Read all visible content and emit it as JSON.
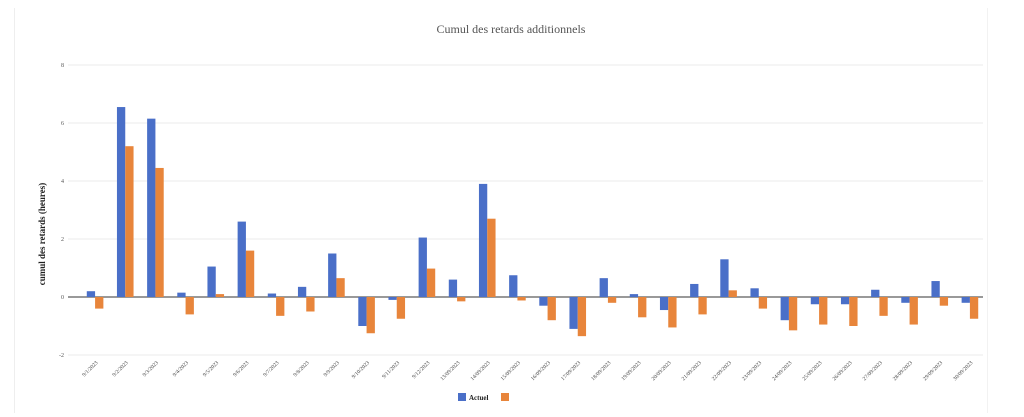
{
  "chart_data": {
    "type": "bar",
    "title": "Cumul des retards additionnels",
    "ylabel": "cumul des retards (heures)",
    "xlabel": "",
    "ylim": [
      -2,
      8
    ],
    "yticks": [
      "8",
      "6",
      "4",
      "2",
      "0",
      "-2"
    ],
    "grid": true,
    "legend_position": "bottom",
    "colors": [
      "#4a6fc8",
      "#e8853b"
    ],
    "categories": [
      "9/1/2023",
      "9/2/2023",
      "9/3/2023",
      "9/4/2023",
      "9/5/2023",
      "9/6/2023",
      "9/7/2023",
      "9/8/2023",
      "9/9/2023",
      "9/10/2023",
      "9/11/2023",
      "9/12/2023",
      "13/09/2023",
      "14/09/2023",
      "15/09/2023",
      "16/09/2023",
      "17/09/2023",
      "18/09/2023",
      "19/09/2023",
      "20/09/2023",
      "21/09/2023",
      "22/09/2023",
      "23/09/2023",
      "24/09/2023",
      "25/09/2023",
      "26/09/2023",
      "27/09/2023",
      "28/09/2023",
      "29/09/2023",
      "30/09/2023"
    ],
    "series": [
      {
        "name": "Actuel",
        "values": [
          0.2,
          6.55,
          6.15,
          0.15,
          1.05,
          2.6,
          0.12,
          0.35,
          1.5,
          -1.0,
          -0.1,
          2.05,
          0.6,
          3.9,
          0.75,
          -0.3,
          -1.1,
          0.65,
          0.1,
          -0.45,
          0.45,
          1.3,
          0.3,
          -0.8,
          -0.25,
          -0.25,
          0.25,
          -0.2,
          0.55,
          -0.2
        ]
      },
      {
        "name": "",
        "values": [
          -0.4,
          5.2,
          4.45,
          -0.6,
          0.1,
          1.6,
          -0.65,
          -0.5,
          0.65,
          -1.25,
          -0.75,
          0.98,
          -0.15,
          2.7,
          -0.12,
          -0.8,
          -1.35,
          -0.2,
          -0.7,
          -1.05,
          -0.6,
          0.23,
          -0.4,
          -1.15,
          -0.95,
          -1.0,
          -0.65,
          -0.95,
          -0.3,
          -0.75
        ]
      }
    ]
  }
}
